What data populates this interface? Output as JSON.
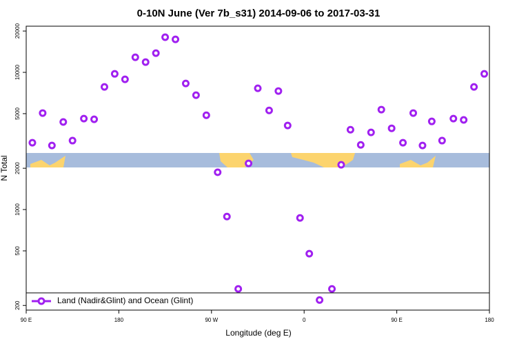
{
  "chart_data": {
    "type": "scatter",
    "title": "0-10N June (Ver 7b_s31)   2014-09-06 to 2017-03-31",
    "x_label": "Longitude (deg E)",
    "y_label": "N Total",
    "log_y": true,
    "legend": "bottom-left",
    "xlim": [
      90,
      540
    ],
    "xticks": [
      {
        "value": 90,
        "label": "90 E"
      },
      180,
      {
        "value": 270,
        "label": "90 W"
      },
      {
        "value": 360,
        "label": "0"
      },
      {
        "value": 450,
        "label": "90 E"
      },
      {
        "value": 540,
        "label": "180"
      }
    ],
    "ylim": [
      185,
      21700
    ],
    "yticks": [
      200,
      500,
      1000,
      2000,
      5000,
      10000,
      20000
    ],
    "series": [
      {
        "name": "Land (Nadir&Glint) and Ocean (Glint)",
        "color": "#a020f0",
        "x": [
          96,
          106,
          115,
          126,
          135,
          146,
          156,
          166,
          176,
          186,
          196,
          206,
          216,
          225,
          235,
          245,
          255,
          265,
          276,
          285,
          296,
          306,
          315,
          326,
          335,
          344,
          356,
          365,
          375,
          387,
          396,
          405,
          415,
          425,
          435,
          445,
          456,
          466,
          475,
          484,
          494,
          505,
          515,
          525,
          535
        ],
        "values": [
          3070,
          5050,
          2930,
          4350,
          3180,
          4600,
          4550,
          7830,
          9750,
          8890,
          12880,
          11880,
          13800,
          18030,
          17400,
          8300,
          6820,
          4870,
          1870,
          889,
          264,
          2170,
          7650,
          5280,
          7310,
          4100,
          869,
          477,
          219,
          264,
          2120,
          3820,
          2960,
          3650,
          5350,
          3910,
          3070,
          5050,
          2930,
          4390,
          3180,
          4600,
          4500,
          7830,
          9750
        ]
      }
    ]
  }
}
